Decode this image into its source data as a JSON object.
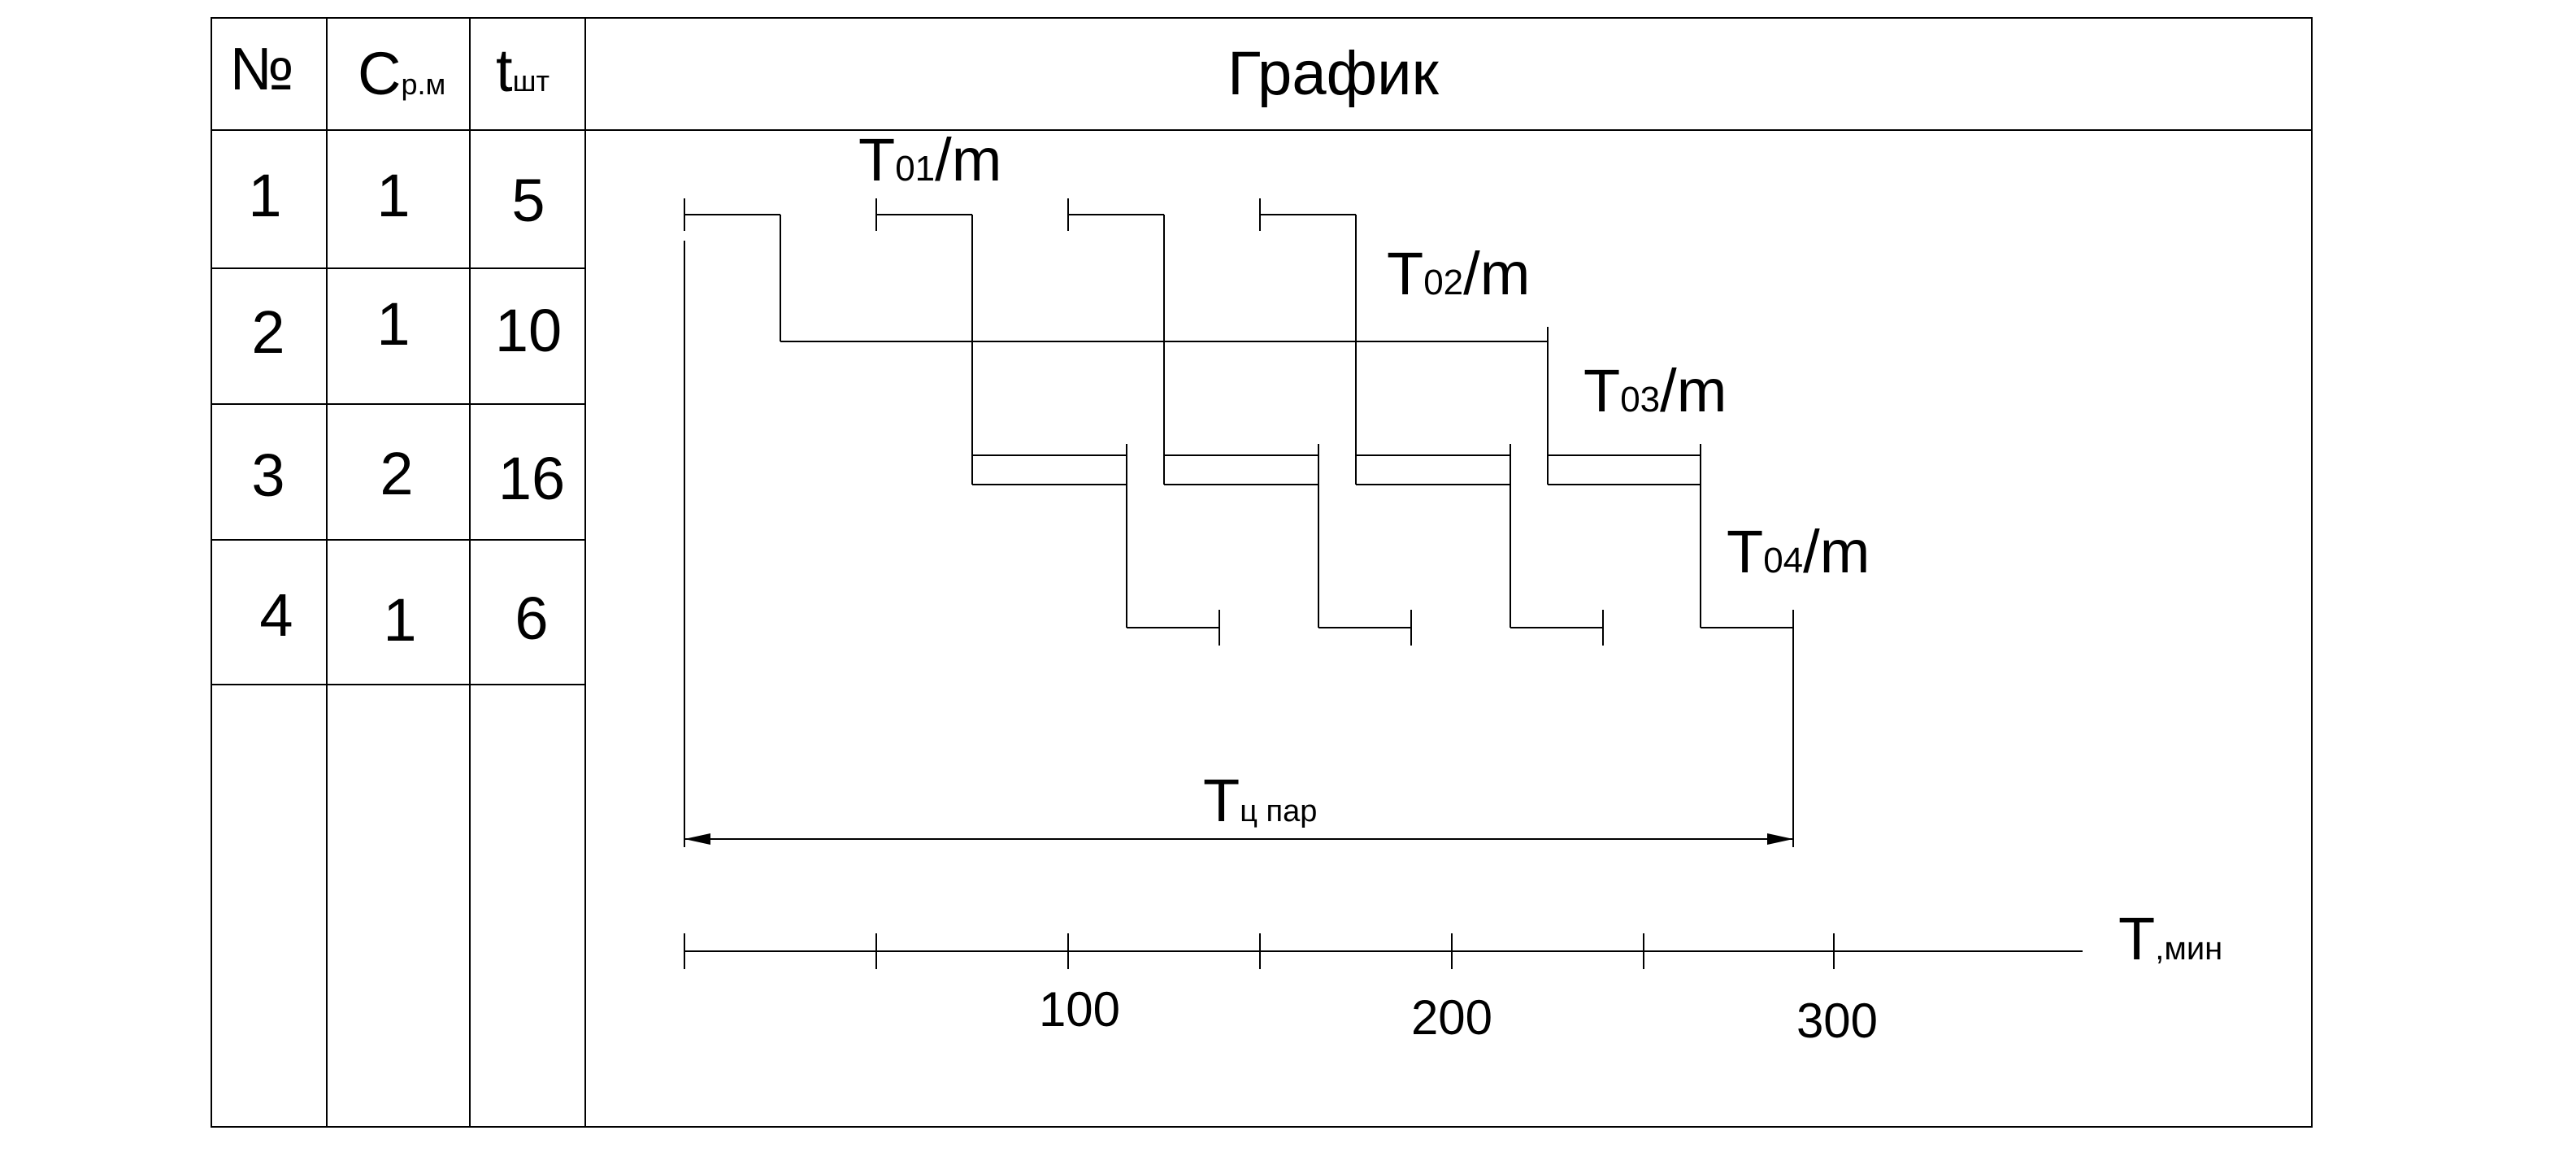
{
  "table": {
    "headers": {
      "num": "№",
      "c_main": "C",
      "c_sub": "р.м",
      "t_main": "t",
      "t_sub": "шт"
    },
    "rows": [
      {
        "num": "1",
        "c": "1",
        "t": "5"
      },
      {
        "num": "2",
        "c": "1",
        "t": "10"
      },
      {
        "num": "3",
        "c": "2",
        "t": "16"
      },
      {
        "num": "4",
        "c": "1",
        "t": "6"
      }
    ]
  },
  "graph": {
    "title": "График",
    "op_labels": [
      {
        "main": "T",
        "sub": "01",
        "suffix": "/m"
      },
      {
        "main": "T",
        "sub": "02",
        "suffix": "/m"
      },
      {
        "main": "T",
        "sub": "03",
        "suffix": "/m"
      },
      {
        "main": "T",
        "sub": "04",
        "suffix": "/m"
      }
    ],
    "cycle_label": {
      "main": "T",
      "sub": "ц пар"
    },
    "axis": {
      "label_main": "T",
      "label_sub": ",мин",
      "ticks": [
        "100",
        "200",
        "300"
      ]
    }
  },
  "colors": {
    "line": "#000000",
    "background": "#ffffff"
  }
}
